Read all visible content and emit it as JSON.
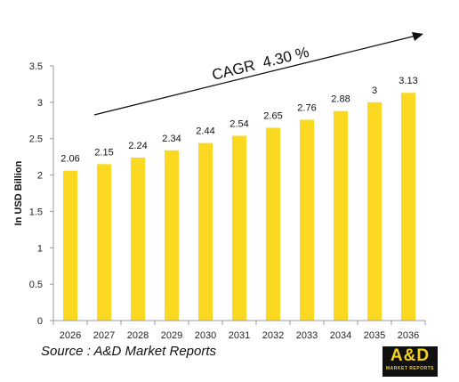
{
  "chart_data": {
    "type": "bar",
    "categories": [
      "2026",
      "2027",
      "2028",
      "2029",
      "2030",
      "2031",
      "2032",
      "2033",
      "2034",
      "2035",
      "2036"
    ],
    "values": [
      2.06,
      2.15,
      2.24,
      2.34,
      2.44,
      2.54,
      2.65,
      2.76,
      2.88,
      3,
      3.13
    ],
    "value_labels": [
      "2.06",
      "2.15",
      "2.24",
      "2.34",
      "2.44",
      "2.54",
      "2.65",
      "2.76",
      "2.88",
      "3",
      "3.13"
    ],
    "ylabel": "In USD Billion",
    "ylim": [
      0,
      3.5
    ],
    "yticks": [
      "0",
      "0.5",
      "1",
      "1.5",
      "2",
      "2.5",
      "3",
      "3.5"
    ],
    "grid": false,
    "bar_color": "#fbd922",
    "annotation": "CAGR  4.30 %"
  },
  "source": "Source : A&D Market Reports",
  "logo": {
    "text": "A&D",
    "subtext": "MARKET REPORTS"
  }
}
